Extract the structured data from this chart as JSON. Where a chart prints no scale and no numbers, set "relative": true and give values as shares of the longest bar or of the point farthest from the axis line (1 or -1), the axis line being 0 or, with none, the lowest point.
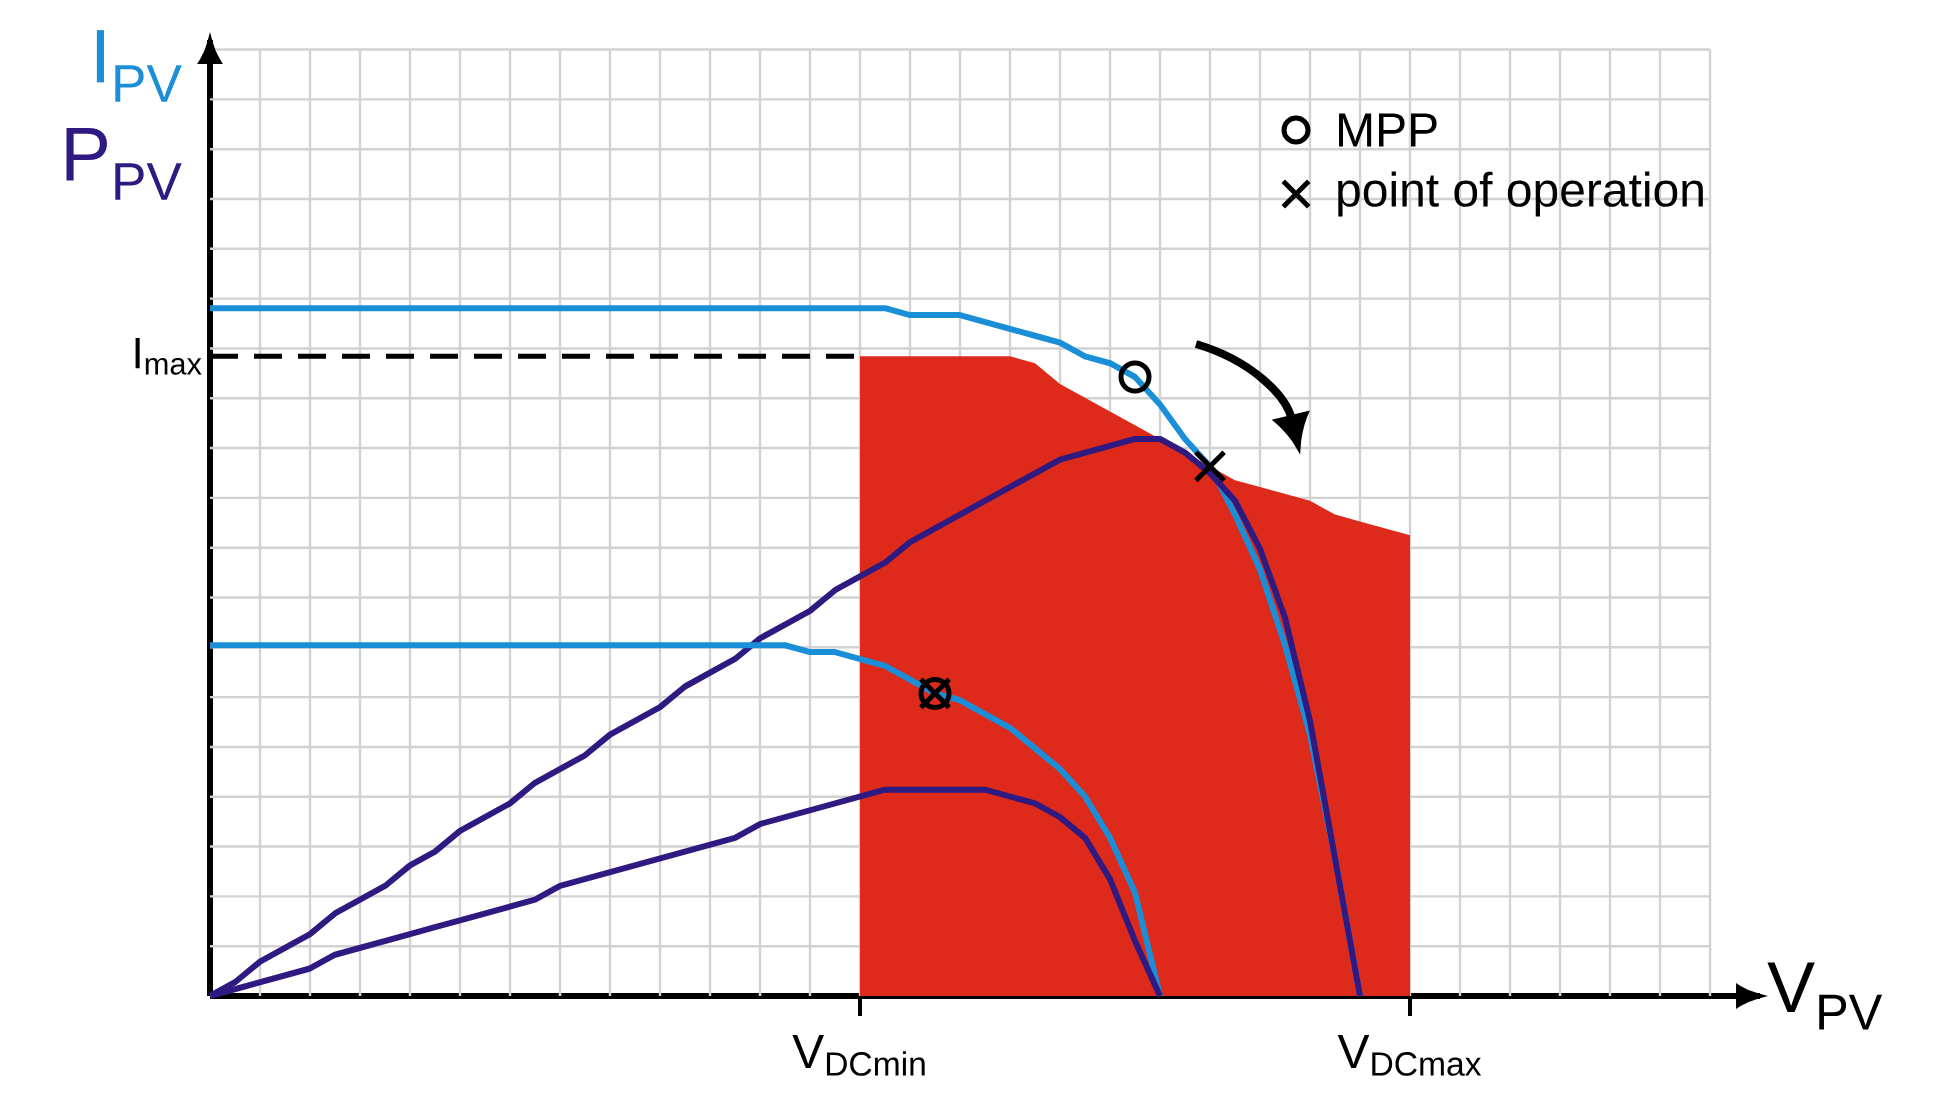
{
  "chart_data": {
    "type": "line",
    "relative": true,
    "ylabel": "I$_{PV}$",
    "y2label": "P$_{PV}$",
    "xlabel": "V$_{PV}$",
    "grid": true,
    "legend": "top right",
    "categories": [
      null,
      null,
      null,
      null,
      null,
      null,
      null,
      null,
      null,
      null,
      null,
      null,
      null,
      null,
      null,
      null,
      null,
      null,
      null,
      null,
      null,
      null,
      null,
      null,
      null,
      null,
      "V$_{DCmin}$",
      null,
      null,
      null,
      null,
      null,
      null,
      null,
      null,
      null,
      null,
      null,
      null,
      null,
      null,
      null,
      null,
      null,
      null,
      null,
      null,
      null,
      "V$_{DCmax}$",
      null,
      null,
      null,
      null,
      null,
      null,
      null,
      null,
      null,
      null,
      null
    ],
    "ref_lines": [
      {
        "axis": "y",
        "value": 0.93,
        "label": "I$_{max}$",
        "line_style": "dashed",
        "color": "#000000"
      }
    ],
    "series": [
      {
        "type": "area",
        "color": "#dd2a1b",
        "values": [
          null,
          null,
          null,
          null,
          null,
          null,
          null,
          null,
          null,
          null,
          null,
          null,
          null,
          null,
          null,
          null,
          null,
          null,
          null,
          null,
          null,
          null,
          null,
          null,
          null,
          null,
          0.93,
          0.93,
          0.93,
          0.93,
          0.93,
          0.93,
          0.93,
          0.92,
          0.89,
          0.87,
          0.85,
          0.83,
          0.81,
          0.79,
          0.77,
          0.75,
          0.74,
          0.73,
          0.72,
          0.7,
          0.69,
          0.68,
          0.67,
          null,
          null,
          null,
          null,
          null,
          null,
          null,
          null,
          null,
          null,
          null
        ]
      },
      {
        "color": "#1b8ed8",
        "values": [
          1.0,
          1.0,
          1.0,
          1.0,
          1.0,
          1.0,
          1.0,
          1.0,
          1.0,
          1.0,
          1.0,
          1.0,
          1.0,
          1.0,
          1.0,
          1.0,
          1.0,
          1.0,
          1.0,
          1.0,
          1.0,
          1.0,
          1.0,
          1.0,
          1.0,
          1.0,
          1.0,
          1.0,
          0.99,
          0.99,
          0.99,
          0.98,
          0.97,
          0.96,
          0.95,
          0.93,
          0.92,
          0.9,
          0.86,
          0.81,
          0.77,
          0.7,
          0.62,
          0.51,
          0.38,
          0.2,
          0,
          null,
          null,
          null,
          null,
          null,
          null,
          null,
          null,
          null,
          null,
          null,
          null,
          null
        ]
      },
      {
        "color": "#2e1a80",
        "values": [
          0,
          0.02,
          0.05,
          0.07,
          0.09,
          0.12,
          0.14,
          0.16,
          0.19,
          0.21,
          0.24,
          0.26,
          0.28,
          0.31,
          0.33,
          0.35,
          0.38,
          0.4,
          0.42,
          0.45,
          0.47,
          0.49,
          0.52,
          0.54,
          0.56,
          0.59,
          0.61,
          0.63,
          0.66,
          0.68,
          0.7,
          0.72,
          0.74,
          0.76,
          0.78,
          0.79,
          0.8,
          0.81,
          0.81,
          0.79,
          0.76,
          0.72,
          0.65,
          0.55,
          0.4,
          0.2,
          0,
          null,
          null,
          null,
          null,
          null,
          null,
          null,
          null,
          null,
          null,
          null,
          null,
          null
        ]
      },
      {
        "color": "#1b8ed8",
        "values": [
          0.51,
          0.51,
          0.51,
          0.51,
          0.51,
          0.51,
          0.51,
          0.51,
          0.51,
          0.51,
          0.51,
          0.51,
          0.51,
          0.51,
          0.51,
          0.51,
          0.51,
          0.51,
          0.51,
          0.51,
          0.51,
          0.51,
          0.51,
          0.51,
          0.5,
          0.5,
          0.49,
          0.48,
          0.46,
          0.44,
          0.43,
          0.41,
          0.39,
          0.36,
          0.33,
          0.29,
          0.23,
          0.15,
          0,
          null,
          null,
          null,
          null,
          null,
          null,
          null,
          null,
          null,
          null,
          null,
          null,
          null,
          null,
          null,
          null,
          null,
          null,
          null,
          null,
          null
        ]
      },
      {
        "color": "#2e1a80",
        "values": [
          0,
          0.01,
          0.02,
          0.03,
          0.04,
          0.06,
          0.07,
          0.08,
          0.09,
          0.1,
          0.11,
          0.12,
          0.13,
          0.14,
          0.16,
          0.17,
          0.18,
          0.19,
          0.2,
          0.21,
          0.22,
          0.23,
          0.25,
          0.26,
          0.27,
          0.28,
          0.29,
          0.3,
          0.3,
          0.3,
          0.3,
          0.3,
          0.29,
          0.28,
          0.26,
          0.23,
          0.17,
          0.08,
          0,
          null,
          null,
          null,
          null,
          null,
          null,
          null,
          null,
          null,
          null,
          null,
          null,
          null,
          null,
          null,
          null,
          null,
          null,
          null,
          null,
          null
        ]
      },
      {
        "type": "scatter",
        "name": "MPP",
        "marker": "circle",
        "color": "#000000",
        "values": [
          null,
          null,
          null,
          null,
          null,
          null,
          null,
          null,
          null,
          null,
          null,
          null,
          null,
          null,
          null,
          null,
          null,
          null,
          null,
          null,
          null,
          null,
          null,
          null,
          null,
          null,
          null,
          null,
          null,
          0.44,
          null,
          null,
          null,
          null,
          null,
          null,
          null,
          0.9,
          null,
          null,
          null,
          null,
          null,
          null,
          null,
          null,
          null,
          null,
          null,
          null,
          null,
          null,
          null,
          null,
          null,
          null,
          null,
          null,
          null,
          null
        ]
      },
      {
        "type": "scatter",
        "name": "point of operation",
        "marker": "cross",
        "color": "#000000",
        "values": [
          null,
          null,
          null,
          null,
          null,
          null,
          null,
          null,
          null,
          null,
          null,
          null,
          null,
          null,
          null,
          null,
          null,
          null,
          null,
          null,
          null,
          null,
          null,
          null,
          null,
          null,
          null,
          null,
          null,
          0.44,
          null,
          null,
          null,
          null,
          null,
          null,
          null,
          null,
          null,
          null,
          0.77,
          null,
          null,
          null,
          null,
          null,
          null,
          null,
          null,
          null,
          null,
          null,
          null,
          null,
          null,
          null,
          null,
          null,
          null,
          null
        ]
      }
    ]
  }
}
